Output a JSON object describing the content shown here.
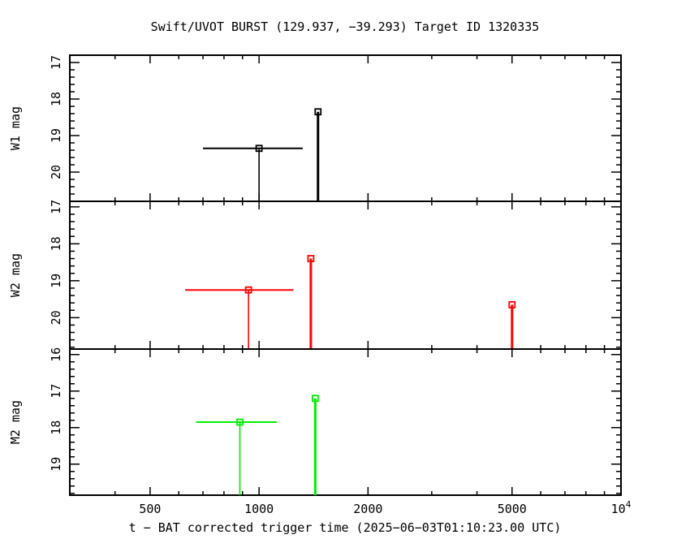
{
  "title": "Swift/UVOT BURST (129.937, −39.293) Target ID 1320335",
  "xlabel": "t − BAT corrected trigger time (2025−06−03T01:10:23.00 UTC)",
  "chart_data": [
    {
      "type": "scatter",
      "panel": "W1",
      "ylabel": "W1 mag",
      "color": "#000000",
      "xscale": "log",
      "xlim": [
        300,
        10000
      ],
      "ylim": [
        20.8,
        16.8
      ],
      "yticks": [
        17,
        18,
        19,
        20
      ],
      "points": [
        {
          "x": 1000,
          "y": 19.35,
          "xerr": [
            700,
            1320
          ],
          "upper_limit": true
        },
        {
          "x": 1455,
          "y": 18.35,
          "upper_limit": true
        }
      ]
    },
    {
      "type": "scatter",
      "panel": "W2",
      "ylabel": "W2 mag",
      "color": "#ff0000",
      "xscale": "log",
      "xlim": [
        300,
        10000
      ],
      "ylim": [
        20.85,
        16.85
      ],
      "yticks": [
        17,
        18,
        19,
        20
      ],
      "points": [
        {
          "x": 935,
          "y": 19.25,
          "xerr": [
            625,
            1245
          ],
          "upper_limit": true
        },
        {
          "x": 1390,
          "y": 18.4,
          "upper_limit": true
        },
        {
          "x": 5000,
          "y": 19.65,
          "upper_limit": true
        }
      ]
    },
    {
      "type": "scatter",
      "panel": "M2",
      "ylabel": "M2 mag",
      "color": "#00ee00",
      "xscale": "log",
      "xlim": [
        300,
        10000
      ],
      "ylim": [
        19.85,
        15.85
      ],
      "yticks": [
        16,
        17,
        18,
        19
      ],
      "points": [
        {
          "x": 885,
          "y": 17.85,
          "xerr": [
            670,
            1120
          ],
          "upper_limit": true
        },
        {
          "x": 1430,
          "y": 17.2,
          "upper_limit": true
        }
      ]
    }
  ],
  "xticks": [
    {
      "value": 500,
      "label": "500"
    },
    {
      "value": 1000,
      "label": "1000"
    },
    {
      "value": 2000,
      "label": "2000"
    },
    {
      "value": 5000,
      "label": "5000"
    },
    {
      "value": 10000,
      "label": "10",
      "sup": "4"
    }
  ]
}
